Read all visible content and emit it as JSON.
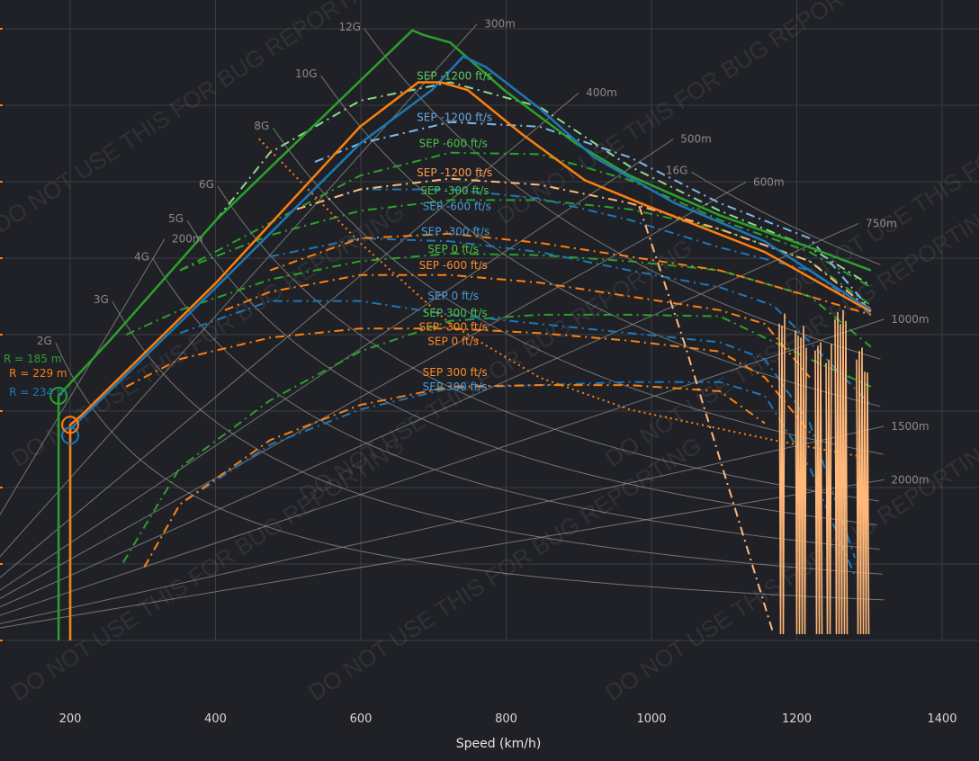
{
  "chart_data": {
    "type": "line",
    "title": "",
    "xlabel": "Speed (km/h)",
    "ylabel": "",
    "xlim": [
      100,
      1450
    ],
    "ylim": [
      -8,
      42
    ],
    "x_ticks": [
      200,
      400,
      600,
      800,
      1000,
      1200,
      1400
    ],
    "y_grid": [
      0,
      5,
      10,
      15,
      20,
      25,
      30,
      35,
      40
    ],
    "colors": {
      "green": "#2ca02c",
      "blue": "#1f77b4",
      "orange": "#ff7f0e",
      "light_green": "#8ed88e",
      "light_blue": "#7fb8e6",
      "light_orange": "#ffb879",
      "reference": "#8a8a8a"
    },
    "g_lines": [
      {
        "label": "2G",
        "n": 2,
        "start_speed": 180
      },
      {
        "label": "3G",
        "n": 3,
        "start_speed": 258
      },
      {
        "label": "4G",
        "n": 4,
        "start_speed": 314
      },
      {
        "label": "5G",
        "n": 5,
        "start_speed": 361
      },
      {
        "label": "6G",
        "n": 6,
        "start_speed": 403
      },
      {
        "label": "8G",
        "n": 8,
        "start_speed": 479
      },
      {
        "label": "10G",
        "n": 10,
        "start_speed": 545
      },
      {
        "label": "12G",
        "n": 12,
        "start_speed": 605
      },
      {
        "label": "16G",
        "n": 16,
        "start_speed": 1055
      }
    ],
    "radius_lines": [
      {
        "label": "200m",
        "r": 200,
        "end_speed": 330
      },
      {
        "label": "300m",
        "r": 300,
        "end_speed": 760
      },
      {
        "label": "400m",
        "r": 400,
        "end_speed": 900
      },
      {
        "label": "500m",
        "r": 500,
        "end_speed": 1030
      },
      {
        "label": "600m",
        "r": 600,
        "end_speed": 1130
      },
      {
        "label": "750m",
        "r": 750,
        "end_speed": 1285
      },
      {
        "label": "1000m",
        "r": 1000,
        "end_speed": 1320
      },
      {
        "label": "1500m",
        "r": 1500,
        "end_speed": 1320
      },
      {
        "label": "2000m",
        "r": 2000,
        "end_speed": 1320
      }
    ],
    "envelopes": [
      {
        "name": "green-envelope",
        "color": "#2ca02c",
        "points": [
          [
            184,
            0
          ],
          [
            184,
            16.0
          ],
          [
            258,
            19.8
          ],
          [
            401,
            27.5
          ],
          [
            599,
            36.6
          ],
          [
            671,
            39.9
          ],
          [
            686,
            39.6
          ],
          [
            723,
            39.1
          ],
          [
            797,
            36.0
          ],
          [
            896,
            32.5
          ],
          [
            970,
            30.4
          ],
          [
            1094,
            27.8
          ],
          [
            1218,
            25.7
          ],
          [
            1302,
            24.2
          ]
        ],
        "marker": [
          184,
          16.0
        ],
        "annotation": "R = 185 m",
        "annotation_at": [
          100,
          18.6
        ]
      },
      {
        "name": "blue-envelope",
        "color": "#1f77b4",
        "points": [
          [
            200,
            0
          ],
          [
            200,
            13.8
          ],
          [
            215,
            14.5
          ],
          [
            401,
            23.1
          ],
          [
            599,
            32.5
          ],
          [
            698,
            36.0
          ],
          [
            741,
            38.2
          ],
          [
            772,
            37.5
          ],
          [
            846,
            34.8
          ],
          [
            921,
            31.6
          ],
          [
            1032,
            28.6
          ],
          [
            1156,
            26.1
          ],
          [
            1302,
            21.6
          ]
        ],
        "marker": [
          200,
          13.4
        ],
        "annotation": "R = 234 m",
        "annotation_at": [
          116,
          16.0
        ]
      },
      {
        "name": "orange-envelope",
        "color": "#ff7f0e",
        "points": [
          [
            200,
            0
          ],
          [
            200,
            14.1
          ],
          [
            215,
            14.7
          ],
          [
            401,
            23.4
          ],
          [
            599,
            33.6
          ],
          [
            679,
            36.5
          ],
          [
            710,
            36.5
          ],
          [
            747,
            36.0
          ],
          [
            822,
            33.1
          ],
          [
            908,
            30.1
          ],
          [
            995,
            28.4
          ],
          [
            1156,
            25.4
          ],
          [
            1302,
            21.5
          ]
        ],
        "marker": [
          200,
          14.1
        ],
        "annotation": "R = 229 m",
        "annotation_at": [
          116,
          16.4
        ]
      }
    ],
    "sep_curves": [
      {
        "label": "SEP -1200 ft/s",
        "color": "#8ed88e",
        "text_color": "#5cc85c",
        "label_at": [
          677,
          36.9
        ],
        "points": [
          [
            401,
            27.5
          ],
          [
            475,
            31.9
          ],
          [
            599,
            35.3
          ],
          [
            723,
            36.5
          ],
          [
            846,
            34.9
          ],
          [
            970,
            31.0
          ],
          [
            1094,
            28.1
          ],
          [
            1218,
            25.7
          ],
          [
            1302,
            23.2
          ]
        ]
      },
      {
        "label": "SEP -600 ft/s",
        "color": "#2ca02c",
        "text_color": "#4cc04c",
        "label_at": [
          680,
          32.5
        ],
        "points": [
          [
            351,
            24.2
          ],
          [
            475,
            27.3
          ],
          [
            599,
            30.4
          ],
          [
            723,
            31.9
          ],
          [
            846,
            31.8
          ],
          [
            970,
            30.1
          ],
          [
            1094,
            27.5
          ],
          [
            1218,
            25.4
          ],
          [
            1302,
            23.1
          ]
        ]
      },
      {
        "label": "SEP -300 ft/s",
        "color": "#2ca02c",
        "text_color": "#4cc04c",
        "label_at": [
          682,
          29.4
        ],
        "points": [
          [
            351,
            24.2
          ],
          [
            475,
            26.5
          ],
          [
            599,
            28.1
          ],
          [
            723,
            28.8
          ],
          [
            846,
            28.8
          ],
          [
            970,
            28.2
          ],
          [
            1094,
            26.9
          ],
          [
            1218,
            24.8
          ],
          [
            1302,
            21.9
          ]
        ]
      },
      {
        "label": "SEP 0 ft/s",
        "color": "#2ca02c",
        "text_color": "#4cc04c",
        "label_at": [
          692,
          25.6
        ],
        "points": [
          [
            277,
            20.0
          ],
          [
            351,
            21.6
          ],
          [
            475,
            23.6
          ],
          [
            599,
            24.8
          ],
          [
            723,
            25.3
          ],
          [
            846,
            25.2
          ],
          [
            970,
            24.8
          ],
          [
            1094,
            24.2
          ],
          [
            1218,
            22.5
          ],
          [
            1302,
            19.2
          ]
        ]
      },
      {
        "label": "SEP 300 ft/s",
        "color": "#2ca02c",
        "text_color": "#4cc04c",
        "label_at": [
          685,
          21.4
        ],
        "points": [
          [
            273,
            5.1
          ],
          [
            351,
            11.3
          ],
          [
            475,
            15.7
          ],
          [
            599,
            18.9
          ],
          [
            723,
            20.9
          ],
          [
            846,
            21.3
          ],
          [
            970,
            21.3
          ],
          [
            1094,
            21.2
          ],
          [
            1218,
            18.4
          ],
          [
            1302,
            16.6
          ]
        ]
      },
      {
        "label": "SEP -1200 ft/s",
        "color": "#7fb8e6",
        "text_color": "#6aa8e0",
        "label_at": [
          677,
          34.2
        ],
        "points": [
          [
            537,
            31.3
          ],
          [
            599,
            32.5
          ],
          [
            723,
            33.9
          ],
          [
            846,
            33.6
          ],
          [
            970,
            31.6
          ],
          [
            1094,
            28.6
          ],
          [
            1218,
            26.3
          ],
          [
            1302,
            21.6
          ]
        ]
      },
      {
        "label": "SEP -600 ft/s",
        "color": "#1f77b4",
        "text_color": "#4a9ad8",
        "label_at": [
          685,
          28.8
        ],
        "points": [
          [
            537,
            28.6
          ],
          [
            599,
            29.5
          ],
          [
            723,
            29.5
          ],
          [
            846,
            28.9
          ],
          [
            970,
            27.5
          ],
          [
            1094,
            25.7
          ],
          [
            1218,
            24.2
          ],
          [
            1302,
            21.3
          ]
        ]
      },
      {
        "label": "SEP -300 ft/s",
        "color": "#1f77b4",
        "text_color": "#4a9ad8",
        "label_at": [
          683,
          25.9
        ],
        "points": [
          [
            475,
            25.1
          ],
          [
            599,
            26.3
          ],
          [
            723,
            26.1
          ],
          [
            846,
            25.4
          ],
          [
            970,
            24.2
          ],
          [
            1094,
            23.1
          ],
          [
            1168,
            21.9
          ],
          [
            1218,
            19.5
          ],
          [
            1302,
            15.4
          ]
        ]
      },
      {
        "label": "SEP 0 ft/s",
        "color": "#1f77b4",
        "text_color": "#4a9ad8",
        "label_at": [
          692,
          21.7
        ],
        "points": [
          [
            351,
            20.1
          ],
          [
            475,
            22.2
          ],
          [
            599,
            22.2
          ],
          [
            723,
            21.3
          ],
          [
            846,
            20.7
          ],
          [
            970,
            20.1
          ],
          [
            1094,
            19.5
          ],
          [
            1156,
            18.4
          ],
          [
            1218,
            14.2
          ],
          [
            1280,
            5.4
          ]
        ]
      },
      {
        "label": "SEP 300 ft/s",
        "color": "#1f77b4",
        "text_color": "#4a9ad8",
        "label_at": [
          685,
          16.6
        ],
        "points": [
          [
            302,
            4.8
          ],
          [
            351,
            8.9
          ],
          [
            475,
            12.8
          ],
          [
            599,
            15.1
          ],
          [
            723,
            16.5
          ],
          [
            846,
            16.7
          ],
          [
            970,
            16.9
          ],
          [
            1094,
            16.9
          ],
          [
            1156,
            16.0
          ],
          [
            1218,
            11.3
          ],
          [
            1280,
            4.2
          ]
        ]
      },
      {
        "label": "SEP -1200 ft/s",
        "color": "#ffb879",
        "text_color": "#ff9a50",
        "label_at": [
          677,
          30.6
        ],
        "points": [
          [
            512,
            28.2
          ],
          [
            599,
            29.5
          ],
          [
            723,
            30.2
          ],
          [
            846,
            29.8
          ],
          [
            970,
            28.6
          ],
          [
            1094,
            26.9
          ],
          [
            1218,
            24.8
          ],
          [
            1302,
            21.6
          ]
        ]
      },
      {
        "label": "SEP -600 ft/s",
        "color": "#ff7f0e",
        "text_color": "#ff8a2a",
        "label_at": [
          680,
          26.6
        ],
        "points": [
          [
            475,
            24.2
          ],
          [
            599,
            26.3
          ],
          [
            723,
            26.6
          ],
          [
            846,
            26.0
          ],
          [
            970,
            25.1
          ],
          [
            1094,
            24.2
          ],
          [
            1218,
            22.5
          ],
          [
            1302,
            21.3
          ]
        ]
      },
      {
        "label": "SEP -300 ft/s",
        "color": "#ff7f0e",
        "text_color": "#ff8a2a",
        "label_at": [
          680,
          24.2
        ],
        "points": [
          [
            413,
            21.6
          ],
          [
            475,
            22.8
          ],
          [
            599,
            23.9
          ],
          [
            723,
            23.9
          ],
          [
            846,
            23.4
          ],
          [
            970,
            22.5
          ],
          [
            1094,
            21.6
          ],
          [
            1156,
            20.7
          ],
          [
            1218,
            17.2
          ]
        ]
      },
      {
        "label": "SEP 0 ft/s",
        "color": "#ff7f0e",
        "text_color": "#ff8a2a",
        "label_at": [
          692,
          20.8
        ],
        "points": [
          [
            277,
            16.6
          ],
          [
            351,
            18.4
          ],
          [
            475,
            19.8
          ],
          [
            599,
            20.4
          ],
          [
            723,
            20.4
          ],
          [
            846,
            20.1
          ],
          [
            970,
            19.6
          ],
          [
            1094,
            18.9
          ],
          [
            1156,
            17.2
          ],
          [
            1218,
            13.6
          ]
        ]
      },
      {
        "label": "SEP 300 ft/s",
        "color": "#ff7f0e",
        "text_color": "#ff8a2a",
        "label_at": [
          685,
          16.7
        ],
        "points": [
          [
            302,
            4.8
          ],
          [
            351,
            8.9
          ],
          [
            475,
            13.1
          ],
          [
            599,
            15.4
          ],
          [
            723,
            16.6
          ],
          [
            846,
            16.7
          ],
          [
            970,
            16.7
          ],
          [
            1094,
            16.3
          ],
          [
            1156,
            14.2
          ]
        ]
      }
    ],
    "dotted_curve": {
      "color": "#ff7f0e",
      "points": [
        [
          460,
          32.8
        ],
        [
          599,
          26.0
        ],
        [
          723,
          20.7
        ],
        [
          846,
          17.2
        ],
        [
          970,
          15.1
        ],
        [
          1168,
          13.1
        ],
        [
          1302,
          11.9
        ]
      ]
    },
    "steep_curve": {
      "color": "#ffb879",
      "points": [
        [
          983,
          28.4
        ],
        [
          1045,
          19.5
        ],
        [
          1168,
          0.4
        ]
      ]
    },
    "watermark": "DO NOT USE THIS FOR BUG REPORTING"
  }
}
